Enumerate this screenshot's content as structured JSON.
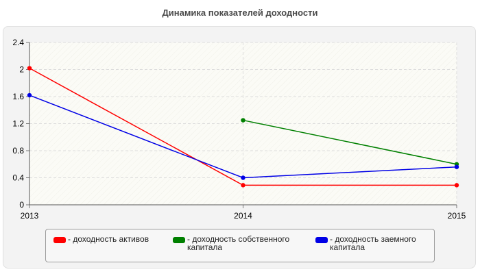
{
  "chart_data": {
    "type": "line",
    "title": "Динамика показателей доходности",
    "xlabel": "",
    "ylabel": "",
    "categories": [
      "2013",
      "2014",
      "2015"
    ],
    "ylim": [
      0,
      2.4
    ],
    "y_ticks": [
      "0",
      "0.4",
      "0.8",
      "1.2",
      "1.6",
      "2",
      "2.4"
    ],
    "grid": true,
    "legend_position": "bottom",
    "series": [
      {
        "name": "- доходность активов",
        "color": "#ff0000",
        "values": [
          2.02,
          0.29,
          0.29
        ]
      },
      {
        "name": "- доходность собственного капитала",
        "color": "#008000",
        "values": [
          null,
          1.25,
          0.6
        ]
      },
      {
        "name": "- доходность заемного капитала",
        "color": "#0000e6",
        "values": [
          1.62,
          0.4,
          0.56
        ]
      }
    ]
  },
  "legend": {
    "items": [
      {
        "label": "- доходность активов",
        "color": "#ff0000"
      },
      {
        "label": "- доходность собственного\nкапитала",
        "color": "#008000"
      },
      {
        "label": "- доходность заемного\nкапитала",
        "color": "#0000e6"
      }
    ]
  }
}
